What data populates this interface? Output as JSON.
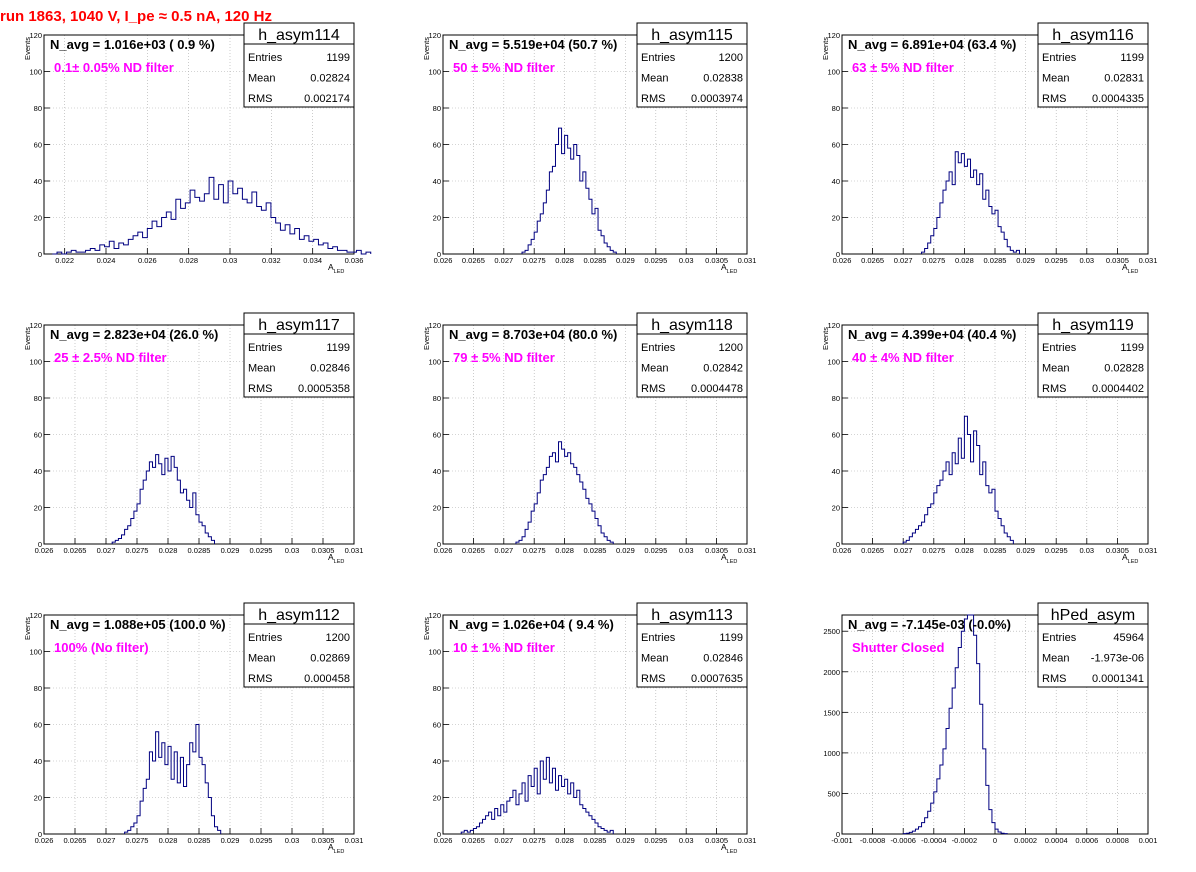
{
  "page_title": "run 1863,  1040 V, I_pe ≈ 0.5 nA, 120 Hz",
  "colors": {
    "hist_line": "#000080",
    "filter_text": "#ff00ff",
    "title_red": "#ff0000",
    "grid": "#aaaaaa"
  },
  "stats_labels": {
    "entries": "Entries",
    "mean": "Mean",
    "rms": "RMS"
  },
  "chart_data": [
    {
      "type": "bar",
      "name": "h_asym114",
      "navg": "N_avg = 1.016e+03 ( 0.9 %)",
      "filter": "0.1± 0.05% ND filter",
      "entries": "1199",
      "mean": "0.02824",
      "rms": "0.002174",
      "xlabel": "A",
      "xlabel_sub": "LED",
      "ylabel": "Events",
      "xlim": [
        0.021,
        0.036
      ],
      "ylim": [
        0,
        120
      ],
      "xticks": [
        0.022,
        0.024,
        0.026,
        0.028,
        0.03,
        0.032,
        0.034,
        0.036
      ],
      "xtick_labels": [
        "0.022",
        "0.024",
        "0.026",
        "0.028",
        "0.03",
        "0.032",
        "0.034",
        "0.036"
      ],
      "yticks": [
        0,
        20,
        40,
        60,
        80,
        100,
        120
      ],
      "bin_start": 0.0214,
      "bin_width": 0.00023,
      "values": [
        0,
        1,
        0,
        1,
        2,
        1,
        1,
        2,
        3,
        2,
        5,
        4,
        7,
        3,
        6,
        5,
        8,
        10,
        12,
        9,
        14,
        18,
        15,
        20,
        23,
        19,
        30,
        25,
        28,
        35,
        31,
        29,
        33,
        42,
        30,
        38,
        28,
        40,
        33,
        36,
        30,
        28,
        34,
        26,
        24,
        28,
        20,
        17,
        13,
        16,
        11,
        14,
        8,
        10,
        7,
        8,
        5,
        6,
        3,
        4,
        2,
        2,
        1,
        1,
        2,
        0,
        1
      ]
    },
    {
      "type": "bar",
      "name": "h_asym115",
      "navg": "N_avg = 5.519e+04 (50.7 %)",
      "filter": "50 ± 5% ND filter",
      "entries": "1200",
      "mean": "0.02838",
      "rms": "0.0003974",
      "xlabel": "A",
      "xlabel_sub": "LED",
      "ylabel": "Events",
      "xlim": [
        0.026,
        0.031
      ],
      "ylim": [
        0,
        120
      ],
      "xticks": [
        0.026,
        0.0265,
        0.027,
        0.0275,
        0.028,
        0.0285,
        0.029,
        0.0295,
        0.03,
        0.0305,
        0.031
      ],
      "xtick_labels": [
        "0.026",
        "0.0265",
        "0.027",
        "0.0275",
        "0.028",
        "0.0285",
        "0.029",
        "0.0295",
        "0.03",
        "0.0305",
        "0.031"
      ],
      "yticks": [
        0,
        20,
        40,
        60,
        80,
        100,
        120
      ],
      "bin_start": 0.0273,
      "bin_width": 5e-05,
      "values": [
        1,
        2,
        5,
        8,
        12,
        18,
        22,
        28,
        35,
        45,
        48,
        60,
        69,
        55,
        65,
        58,
        52,
        60,
        54,
        40,
        45,
        36,
        30,
        22,
        25,
        13,
        10,
        6,
        4,
        2,
        1
      ]
    },
    {
      "type": "bar",
      "name": "h_asym116",
      "navg": "N_avg = 6.891e+04 (63.4 %)",
      "filter": "63 ± 5% ND filter",
      "entries": "1199",
      "mean": "0.02831",
      "rms": "0.0004335",
      "xlabel": "A",
      "xlabel_sub": "LED",
      "ylabel": "Events",
      "xlim": [
        0.026,
        0.031
      ],
      "ylim": [
        0,
        120
      ],
      "xticks": [
        0.026,
        0.0265,
        0.027,
        0.0275,
        0.028,
        0.0285,
        0.029,
        0.0295,
        0.03,
        0.0305,
        0.031
      ],
      "xtick_labels": [
        "0.026",
        "0.0265",
        "0.027",
        "0.0275",
        "0.028",
        "0.0285",
        "0.029",
        "0.0295",
        "0.03",
        "0.0305",
        "0.031"
      ],
      "yticks": [
        0,
        20,
        40,
        60,
        80,
        100,
        120
      ],
      "bin_start": 0.0273,
      "bin_width": 5e-05,
      "values": [
        1,
        3,
        6,
        10,
        14,
        20,
        28,
        35,
        40,
        45,
        38,
        56,
        50,
        55,
        48,
        52,
        42,
        46,
        38,
        44,
        30,
        35,
        26,
        22,
        24,
        15,
        12,
        8,
        4,
        2,
        1,
        2
      ]
    },
    {
      "type": "bar",
      "name": "h_asym117",
      "navg": "N_avg = 2.823e+04 (26.0 %)",
      "filter": "25 ± 2.5% ND filter",
      "entries": "1199",
      "mean": "0.02846",
      "rms": "0.0005358",
      "xlabel": "A",
      "xlabel_sub": "LED",
      "ylabel": "Events",
      "xlim": [
        0.026,
        0.031
      ],
      "ylim": [
        0,
        120
      ],
      "xticks": [
        0.026,
        0.0265,
        0.027,
        0.0275,
        0.028,
        0.0285,
        0.029,
        0.0295,
        0.03,
        0.0305,
        0.031
      ],
      "xtick_labels": [
        "0.026",
        "0.0265",
        "0.027",
        "0.0275",
        "0.028",
        "0.0285",
        "0.029",
        "0.0295",
        "0.03",
        "0.0305",
        "0.031"
      ],
      "yticks": [
        0,
        20,
        40,
        60,
        80,
        100,
        120
      ],
      "bin_start": 0.0271,
      "bin_width": 5e-05,
      "values": [
        1,
        2,
        3,
        5,
        8,
        10,
        14,
        18,
        22,
        30,
        35,
        40,
        45,
        42,
        49,
        44,
        38,
        47,
        40,
        48,
        42,
        35,
        28,
        30,
        24,
        20,
        28,
        16,
        12,
        10,
        6,
        4,
        2
      ]
    },
    {
      "type": "bar",
      "name": "h_asym118",
      "navg": "N_avg = 8.703e+04 (80.0 %)",
      "filter": "79 ± 5% ND filter",
      "entries": "1200",
      "mean": "0.02842",
      "rms": "0.0004478",
      "xlabel": "A",
      "xlabel_sub": "LED",
      "ylabel": "Events",
      "xlim": [
        0.026,
        0.031
      ],
      "ylim": [
        0,
        120
      ],
      "xticks": [
        0.026,
        0.0265,
        0.027,
        0.0275,
        0.028,
        0.0285,
        0.029,
        0.0295,
        0.03,
        0.0305,
        0.031
      ],
      "xtick_labels": [
        "0.026",
        "0.0265",
        "0.027",
        "0.0275",
        "0.028",
        "0.0285",
        "0.029",
        "0.0295",
        "0.03",
        "0.0305",
        "0.031"
      ],
      "yticks": [
        0,
        20,
        40,
        60,
        80,
        100,
        120
      ],
      "bin_start": 0.0272,
      "bin_width": 5e-05,
      "values": [
        1,
        2,
        4,
        8,
        12,
        18,
        22,
        28,
        35,
        38,
        42,
        48,
        50,
        45,
        56,
        52,
        48,
        50,
        44,
        42,
        38,
        34,
        30,
        25,
        22,
        18,
        14,
        10,
        6,
        4,
        2,
        1
      ]
    },
    {
      "type": "bar",
      "name": "h_asym119",
      "navg": "N_avg = 4.399e+04 (40.4 %)",
      "filter": "40 ± 4% ND filter",
      "entries": "1199",
      "mean": "0.02828",
      "rms": "0.0004402",
      "xlabel": "A",
      "xlabel_sub": "LED",
      "ylabel": "Events",
      "xlim": [
        0.026,
        0.031
      ],
      "ylim": [
        0,
        120
      ],
      "xticks": [
        0.026,
        0.0265,
        0.027,
        0.0275,
        0.028,
        0.0285,
        0.029,
        0.0295,
        0.03,
        0.0305,
        0.031
      ],
      "xtick_labels": [
        "0.026",
        "0.0265",
        "0.027",
        "0.0275",
        "0.028",
        "0.0285",
        "0.029",
        "0.0295",
        "0.03",
        "0.0305",
        "0.031"
      ],
      "yticks": [
        0,
        20,
        40,
        60,
        80,
        100,
        120
      ],
      "bin_start": 0.027,
      "bin_width": 5e-05,
      "values": [
        1,
        2,
        4,
        6,
        8,
        10,
        12,
        16,
        20,
        22,
        28,
        32,
        35,
        40,
        45,
        38,
        50,
        44,
        58,
        47,
        70,
        60,
        45,
        62,
        54,
        38,
        45,
        32,
        28,
        30,
        18,
        14,
        10,
        6,
        4,
        2
      ]
    },
    {
      "type": "bar",
      "name": "h_asym112",
      "navg": "N_avg = 1.088e+05 (100.0 %)",
      "filter": "100% (No filter)",
      "entries": "1200",
      "mean": "0.02869",
      "rms": "0.000458",
      "xlabel": "A",
      "xlabel_sub": "LED",
      "ylabel": "Events",
      "xlim": [
        0.026,
        0.031
      ],
      "ylim": [
        0,
        120
      ],
      "xticks": [
        0.026,
        0.0265,
        0.027,
        0.0275,
        0.028,
        0.0285,
        0.029,
        0.0295,
        0.03,
        0.0305,
        0.031
      ],
      "xtick_labels": [
        "0.026",
        "0.0265",
        "0.027",
        "0.0275",
        "0.028",
        "0.0285",
        "0.029",
        "0.0295",
        "0.03",
        "0.0305",
        "0.031"
      ],
      "yticks": [
        0,
        20,
        40,
        60,
        80,
        100,
        120
      ],
      "bin_start": 0.0273,
      "bin_width": 5e-05,
      "values": [
        1,
        2,
        4,
        6,
        10,
        18,
        25,
        30,
        45,
        40,
        56,
        42,
        50,
        38,
        48,
        30,
        45,
        28,
        42,
        26,
        38,
        50,
        45,
        60,
        42,
        38,
        28,
        20,
        10,
        4,
        2
      ]
    },
    {
      "type": "bar",
      "name": "h_asym113",
      "navg": "N_avg = 1.026e+04 ( 9.4 %)",
      "filter": "10 ± 1% ND filter",
      "entries": "1199",
      "mean": "0.02846",
      "rms": "0.0007635",
      "xlabel": "A",
      "xlabel_sub": "LED",
      "ylabel": "Events",
      "xlim": [
        0.026,
        0.031
      ],
      "ylim": [
        0,
        120
      ],
      "xticks": [
        0.026,
        0.0265,
        0.027,
        0.0275,
        0.028,
        0.0285,
        0.029,
        0.0295,
        0.03,
        0.0305,
        0.031
      ],
      "xtick_labels": [
        "0.026",
        "0.0265",
        "0.027",
        "0.0275",
        "0.028",
        "0.0285",
        "0.029",
        "0.0295",
        "0.03",
        "0.0305",
        "0.031"
      ],
      "yticks": [
        0,
        20,
        40,
        60,
        80,
        100,
        120
      ],
      "bin_start": 0.0263,
      "bin_width": 5e-05,
      "values": [
        1,
        2,
        1,
        2,
        3,
        4,
        6,
        8,
        10,
        12,
        8,
        14,
        10,
        16,
        12,
        18,
        20,
        24,
        16,
        22,
        28,
        18,
        32,
        26,
        36,
        22,
        40,
        30,
        42,
        28,
        36,
        24,
        32,
        26,
        30,
        22,
        28,
        20,
        24,
        16,
        14,
        12,
        10,
        8,
        6,
        4,
        3,
        2,
        1,
        2
      ]
    },
    {
      "type": "bar",
      "name": "hPed_asym",
      "navg": "N_avg = -7.145e-03 (-0.0%)",
      "filter": "Shutter Closed",
      "entries": "45964",
      "mean": "-1.973e-06",
      "rms": "0.0001341",
      "xlabel": "",
      "xlabel_sub": "",
      "ylabel": "",
      "xlim": [
        -0.001,
        0.001
      ],
      "ylim": [
        0,
        2700
      ],
      "xticks": [
        -0.001,
        -0.0008,
        -0.0006,
        -0.0004,
        -0.0002,
        0,
        0.0002,
        0.0004,
        0.0006,
        0.0008,
        0.001
      ],
      "xtick_labels": [
        "-0.001",
        "-0.0008",
        "-0.0006",
        "-0.0004",
        "-0.0002",
        "0",
        "0.0002",
        "0.0004",
        "0.0006",
        "0.0008",
        "0.001"
      ],
      "yticks": [
        0,
        500,
        1000,
        1500,
        2000,
        2500
      ],
      "bin_start": -0.0006,
      "bin_width": 2e-05,
      "values": [
        5,
        10,
        20,
        35,
        60,
        90,
        140,
        200,
        280,
        380,
        520,
        680,
        850,
        1050,
        1300,
        1550,
        1800,
        2050,
        2300,
        2500,
        2650,
        2800,
        2700,
        2450,
        2100,
        1600,
        1050,
        600,
        300,
        140,
        60,
        25,
        10,
        5
      ]
    }
  ]
}
